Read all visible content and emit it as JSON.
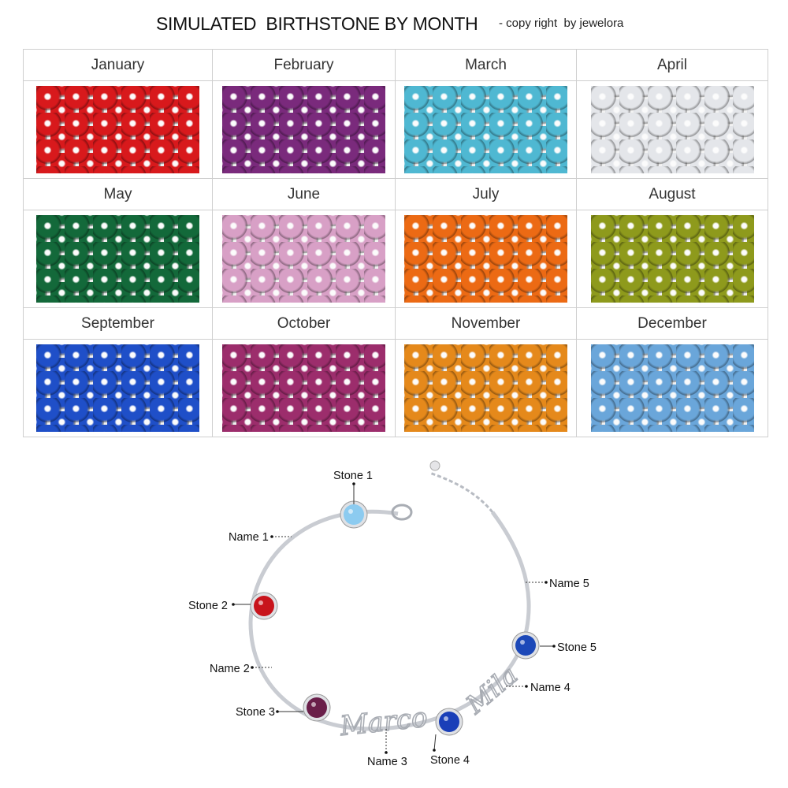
{
  "header": {
    "title": "SIMULATED  BIRTHSTONE BY MONTH",
    "copyright": "- copy right  by jewelora"
  },
  "months": [
    {
      "label": "January",
      "color": "#d8191c"
    },
    {
      "label": "February",
      "color": "#7a2a7c"
    },
    {
      "label": "March",
      "color": "#4fb8d2"
    },
    {
      "label": "April",
      "color": "#e4e6ea"
    },
    {
      "label": "May",
      "color": "#13693a"
    },
    {
      "label": "June",
      "color": "#d8a0c6"
    },
    {
      "label": "July",
      "color": "#ec6a14"
    },
    {
      "label": "August",
      "color": "#8e9a1c"
    },
    {
      "label": "September",
      "color": "#1f4fc8"
    },
    {
      "label": "October",
      "color": "#9c2d6c"
    },
    {
      "label": "November",
      "color": "#e5891b"
    },
    {
      "label": "December",
      "color": "#6aa6da"
    }
  ],
  "bracelet": {
    "stones": [
      {
        "label": "Stone 1",
        "color": "#8ccbf0"
      },
      {
        "label": "Stone 2",
        "color": "#c8141c"
      },
      {
        "label": "Stone 3",
        "color": "#6a1f4a"
      },
      {
        "label": "Stone 4",
        "color": "#1a3fb8"
      },
      {
        "label": "Stone 5",
        "color": "#1c48b8"
      }
    ],
    "names": [
      {
        "label": "Name 1"
      },
      {
        "label": "Name 2"
      },
      {
        "label": "Name 3",
        "engraving": "Marco"
      },
      {
        "label": "Name 4",
        "engraving": "Mila"
      },
      {
        "label": "Name 5"
      }
    ],
    "metal_color": "#c9ccd2"
  }
}
